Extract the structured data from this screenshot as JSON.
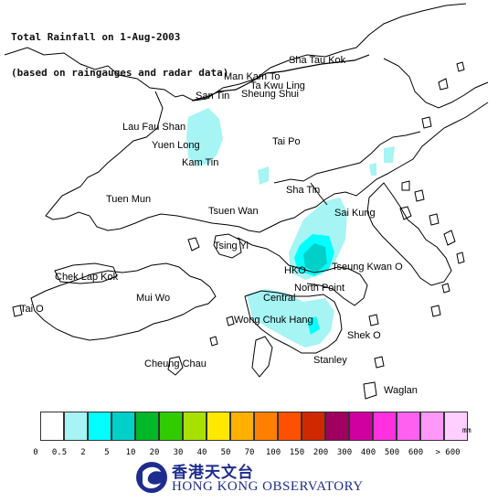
{
  "title": {
    "line1": "Total Rainfall on 1-Aug-2003",
    "line2": "(based on raingauges and radar data)"
  },
  "places": [
    {
      "key": "sha-tau-kok",
      "label": "Sha Tau Kok"
    },
    {
      "key": "man-kam-to",
      "label": "Man Kam To"
    },
    {
      "key": "ta-kwu-ling",
      "label": "Ta Kwu Ling"
    },
    {
      "key": "san-tin",
      "label": "San Tin"
    },
    {
      "key": "sheung-shui",
      "label": "Sheung Shui"
    },
    {
      "key": "lau-fau-shan",
      "label": "Lau Fau Shan"
    },
    {
      "key": "yuen-long",
      "label": "Yuen Long"
    },
    {
      "key": "kam-tin",
      "label": "Kam Tin"
    },
    {
      "key": "tai-po",
      "label": "Tai Po"
    },
    {
      "key": "tuen-mun",
      "label": "Tuen Mun"
    },
    {
      "key": "sha-tin",
      "label": "Sha Tin"
    },
    {
      "key": "tsuen-wan",
      "label": "Tsuen Wan"
    },
    {
      "key": "sai-kung",
      "label": "Sai Kung"
    },
    {
      "key": "tsing-yi",
      "label": "Tsing Yi"
    },
    {
      "key": "hko",
      "label": "HKO"
    },
    {
      "key": "tseung-kwan-o",
      "label": "Tseung Kwan O"
    },
    {
      "key": "chek-lap-kok",
      "label": "Chek Lap Kok"
    },
    {
      "key": "north-point",
      "label": "North Point"
    },
    {
      "key": "mui-wo",
      "label": "Mui Wo"
    },
    {
      "key": "central",
      "label": "Central"
    },
    {
      "key": "tai-o",
      "label": "Tai O"
    },
    {
      "key": "wong-chuk-hang",
      "label": "Wong Chuk Hang"
    },
    {
      "key": "shek-o",
      "label": "Shek O"
    },
    {
      "key": "cheung-chau",
      "label": "Cheung Chau"
    },
    {
      "key": "stanley",
      "label": "Stanley"
    },
    {
      "key": "waglan",
      "label": "Waglan"
    }
  ],
  "legend": {
    "unit": "mm",
    "colors": [
      "#ffffff",
      "#a6f4f4",
      "#00ffff",
      "#00d0c8",
      "#00b828",
      "#30cc00",
      "#a8e000",
      "#ffe800",
      "#ffb000",
      "#ff8000",
      "#ff5000",
      "#d02800",
      "#a00060",
      "#d000a0",
      "#ff30e0",
      "#ff60f0",
      "#ff98f8",
      "#ffd0ff"
    ],
    "ticks": [
      "0",
      "0.5",
      "2",
      "5",
      "10",
      "20",
      "30",
      "40",
      "50",
      "70",
      "100",
      "150",
      "200",
      "300",
      "400",
      "500",
      "600",
      "> 600"
    ]
  },
  "rain_areas": [
    {
      "name": "northwest",
      "level": "0.5-2",
      "color": "#a6f4f4"
    },
    {
      "name": "kowloon-east",
      "level": "0.5-2",
      "color": "#a6f4f4"
    },
    {
      "name": "kowloon-core-2",
      "level": "2-5",
      "color": "#00ffff"
    },
    {
      "name": "kowloon-core-5",
      "level": "5-10",
      "color": "#00d0c8"
    },
    {
      "name": "hk-island",
      "level": "0.5-2",
      "color": "#a6f4f4"
    }
  ],
  "logo": {
    "chinese": "香港天文台",
    "english": "HONG KONG OBSERVATORY",
    "primary_color": "#1f2c8f"
  }
}
